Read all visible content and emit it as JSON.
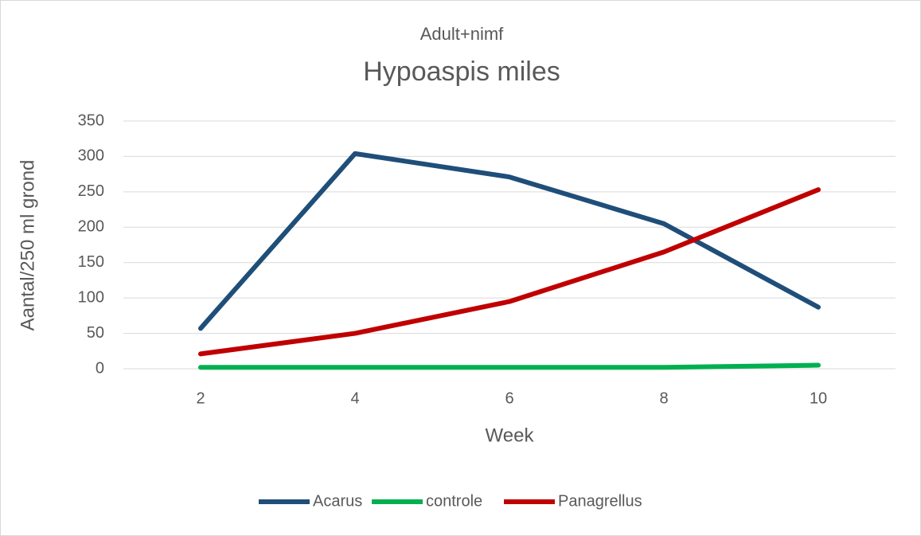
{
  "chart_data": {
    "type": "line",
    "subtitle": "Adult+nimf",
    "title": "Hypoaspis miles",
    "x_label": "Week",
    "y_label": "Aantal/250 ml grond",
    "categories": [
      "2",
      "4",
      "6",
      "8",
      "10"
    ],
    "series": [
      {
        "name": "Acarus",
        "color": "#1f4e79",
        "values": [
          57,
          304,
          271,
          205,
          87
        ]
      },
      {
        "name": "controle",
        "color": "#00b050",
        "values": [
          2,
          2,
          2,
          2,
          5
        ]
      },
      {
        "name": "Panagrellus",
        "color": "#c00000",
        "values": [
          21,
          50,
          95,
          165,
          253
        ]
      }
    ],
    "ylim": [
      0,
      350
    ],
    "yticks": [
      0,
      50,
      100,
      150,
      200,
      250,
      300,
      350
    ],
    "grid": true,
    "legend": "bottom"
  }
}
